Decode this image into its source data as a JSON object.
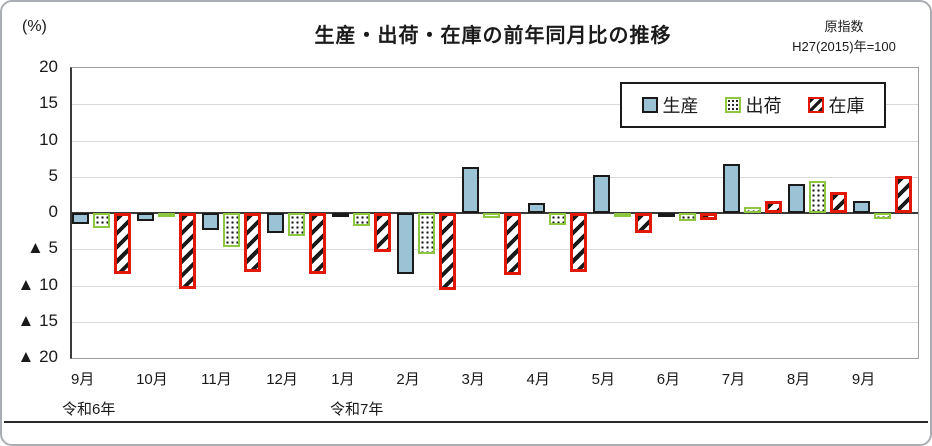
{
  "header": {
    "note_line1": "原指数",
    "note_line2": "H27(2015)年=100"
  },
  "chart_data": {
    "type": "bar",
    "title": "生産・出荷・在庫の前年同月比の推移",
    "ylabel": "(%)",
    "xlabel": "",
    "ylim": [
      -20,
      20
    ],
    "ytick_step": 5,
    "negative_prefix": "▲",
    "grid": true,
    "legend_position": "top-right-inside",
    "categories": [
      "9月",
      "10月",
      "11月",
      "12月",
      "1月",
      "2月",
      "3月",
      "4月",
      "5月",
      "6月",
      "7月",
      "8月",
      "9月"
    ],
    "era_labels": [
      {
        "label": "令和6年",
        "index": 0
      },
      {
        "label": "令和7年",
        "index": 4
      }
    ],
    "series": [
      {
        "name": "生産",
        "key": "production",
        "fill": "#9cc3d5",
        "border": "#1a1a1a",
        "pattern": "solid",
        "values": [
          -1.5,
          -1.1,
          -2.3,
          -2.7,
          -0.4,
          -8.4,
          6.3,
          1.4,
          5.3,
          -0.4,
          6.8,
          4.0,
          1.6
        ]
      },
      {
        "name": "出荷",
        "key": "shipment",
        "fill": "#ffffff",
        "border": "#8dc63f",
        "pattern": "dots",
        "values": [
          -2.0,
          -0.4,
          -4.7,
          -3.2,
          -1.8,
          -5.6,
          -0.7,
          -1.6,
          -0.5,
          -1.1,
          0.8,
          4.4,
          -0.8
        ]
      },
      {
        "name": "在庫",
        "key": "inventory",
        "fill": "#ffffff",
        "border": "#e21807",
        "pattern": "diagonal-hatch",
        "values": [
          -8.4,
          -10.5,
          -8.1,
          -8.4,
          -5.4,
          -10.6,
          -8.6,
          -8.1,
          -2.7,
          -1.0,
          1.7,
          2.9,
          5.1
        ]
      }
    ]
  },
  "colors": {
    "production_fill": "#9cc3d5",
    "shipment_border": "#8dc63f",
    "inventory_border": "#e21807",
    "gridline": "#d9d9d9",
    "axis": "#3a3a3a"
  }
}
